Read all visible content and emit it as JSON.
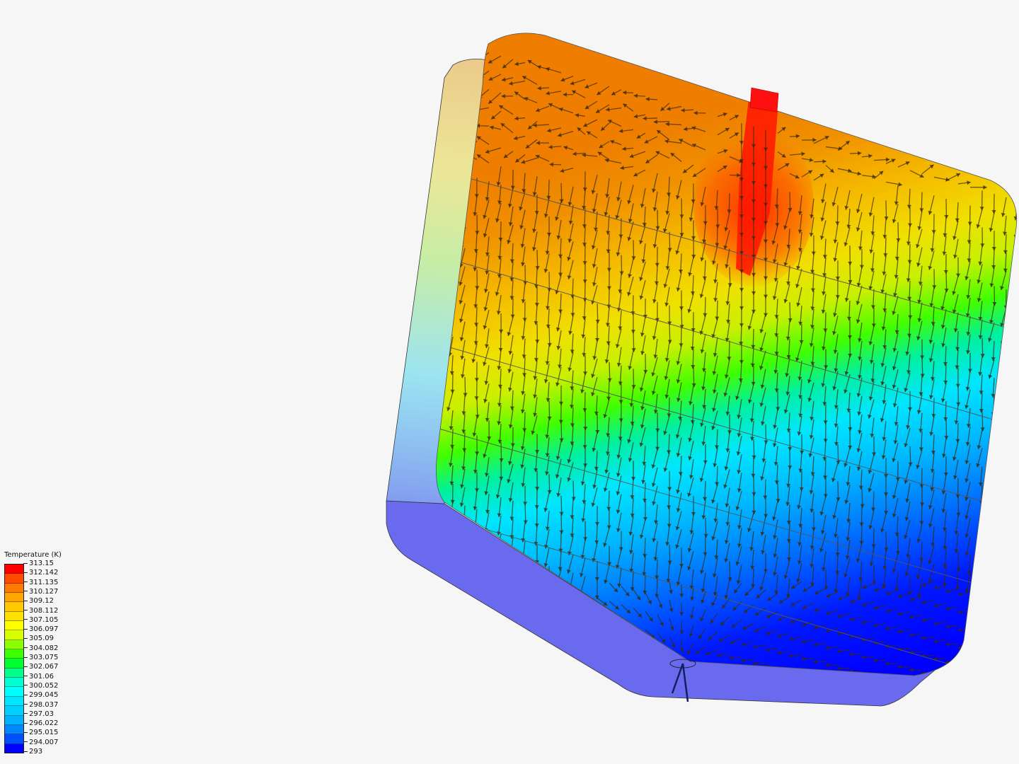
{
  "legend": {
    "title": "Temperature (K)",
    "ticks": [
      "313.15",
      "312.142",
      "311.135",
      "310.127",
      "309.12",
      "308.112",
      "307.105",
      "306.097",
      "305.09",
      "304.082",
      "303.075",
      "302.067",
      "301.06",
      "300.052",
      "299.045",
      "298.037",
      "297.03",
      "296.022",
      "295.015",
      "294.007",
      "293"
    ],
    "colors": [
      "#ff0000",
      "#ff4a00",
      "#ff7a00",
      "#ffa500",
      "#ffc800",
      "#ffe100",
      "#ffff00",
      "#d8ff00",
      "#8cff00",
      "#3cff00",
      "#00ff30",
      "#00ff8c",
      "#00ffd2",
      "#00ffff",
      "#00e6ff",
      "#00d0ff",
      "#00b2ff",
      "#0088ff",
      "#0050ff",
      "#0000ff"
    ]
  },
  "scene": {
    "field": "Temperature",
    "min_value": 293,
    "max_value": 313.15,
    "hull_color": "#6a6aef",
    "arrow_color": "#3a2a10"
  }
}
